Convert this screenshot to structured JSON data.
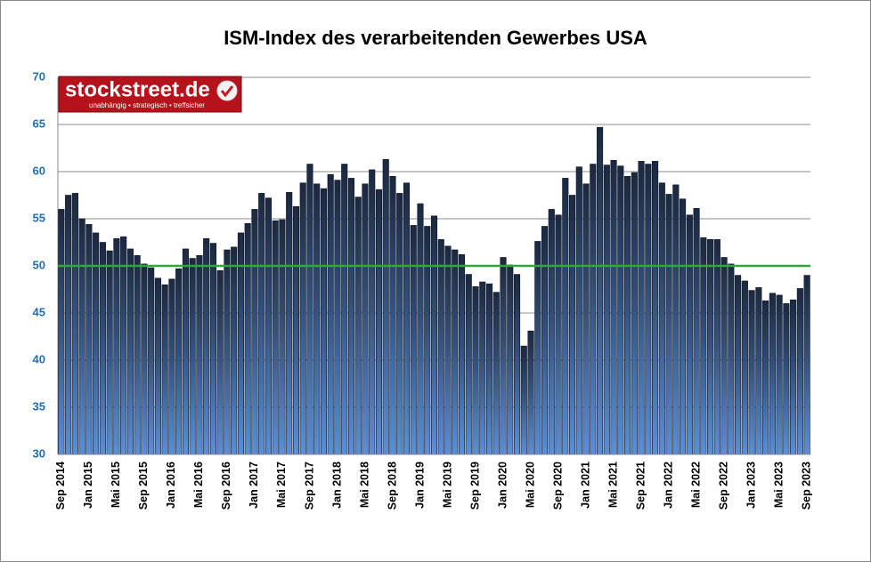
{
  "chart_data": {
    "type": "bar",
    "title": "ISM-Index des verarbeitenden Gewerbes USA",
    "categories": [
      "Sep 2014",
      null,
      null,
      null,
      "Jan 2015",
      null,
      null,
      null,
      "Mai 2015",
      null,
      null,
      null,
      "Sep 2015",
      null,
      null,
      null,
      "Jan 2016",
      null,
      null,
      null,
      "Mai 2016",
      null,
      null,
      null,
      "Sep 2016",
      null,
      null,
      null,
      "Jan 2017",
      null,
      null,
      null,
      "Mai 2017",
      null,
      null,
      null,
      "Sep 2017",
      null,
      null,
      null,
      "Jan 2018",
      null,
      null,
      null,
      "Mai 2018",
      null,
      null,
      null,
      "Sep 2018",
      null,
      null,
      null,
      "Jan 2019",
      null,
      null,
      null,
      "Mai 2019",
      null,
      null,
      null,
      "Sep 2019",
      null,
      null,
      null,
      "Jan 2020",
      null,
      null,
      null,
      "Mai 2020",
      null,
      null,
      null,
      "Sep 2020",
      null,
      null,
      null,
      "Jan 2021",
      null,
      null,
      null,
      "Mai 2021",
      null,
      null,
      null,
      "Sep 2021",
      null,
      null,
      null,
      "Jan 2022",
      null,
      null,
      null,
      "Mai 2022",
      null,
      null,
      null,
      "Sep 2022",
      null,
      null,
      null,
      "Jan 2023",
      null,
      null,
      null,
      "Mai 2023",
      null,
      null,
      null,
      "Sep 2023"
    ],
    "values": [
      56.0,
      57.5,
      57.7,
      55.0,
      54.4,
      53.5,
      52.5,
      51.6,
      52.9,
      53.1,
      51.8,
      51.1,
      50.2,
      49.8,
      48.7,
      48.0,
      48.6,
      49.7,
      51.8,
      50.8,
      51.1,
      52.9,
      52.4,
      49.5,
      51.7,
      52.0,
      53.5,
      54.5,
      56.0,
      57.7,
      57.2,
      54.8,
      54.9,
      57.8,
      56.3,
      58.8,
      60.8,
      58.7,
      58.2,
      59.7,
      59.1,
      60.8,
      59.3,
      57.3,
      58.7,
      60.2,
      58.1,
      61.3,
      59.5,
      57.7,
      58.8,
      54.3,
      56.6,
      54.2,
      55.3,
      52.8,
      52.1,
      51.7,
      51.2,
      49.1,
      47.8,
      48.3,
      48.1,
      47.2,
      50.9,
      50.1,
      49.1,
      41.5,
      43.1,
      52.6,
      54.2,
      56.0,
      55.4,
      59.3,
      57.5,
      60.5,
      58.7,
      60.8,
      64.7,
      60.7,
      61.2,
      60.6,
      59.5,
      59.9,
      61.1,
      60.8,
      61.1,
      58.8,
      57.6,
      58.6,
      57.1,
      55.4,
      56.1,
      53.0,
      52.8,
      52.8,
      50.9,
      50.2,
      49.0,
      48.4,
      47.4,
      47.7,
      46.3,
      47.1,
      46.9,
      46.0,
      46.4,
      47.6,
      49.0
    ],
    "color": "#1b2840",
    "ylim": [
      30,
      70
    ],
    "yticks": [
      30,
      35,
      40,
      45,
      50,
      55,
      60,
      65,
      70
    ],
    "grid": true,
    "reference_line": {
      "value": 50,
      "color": "#2ea836"
    }
  },
  "logo": {
    "name": "stockstreet.de",
    "tagline": "unabhängig • strategisch • treffsicher"
  }
}
